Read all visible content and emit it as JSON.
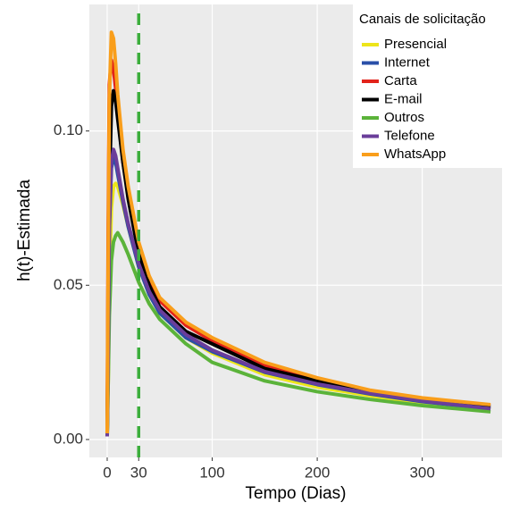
{
  "chart_data": {
    "type": "line",
    "x_label": "Tempo (Dias)",
    "y_label": "h(t)-Estimada",
    "x": [
      0,
      1,
      2,
      4,
      6,
      8,
      10,
      15,
      20,
      30,
      40,
      50,
      75,
      100,
      150,
      200,
      250,
      300,
      365
    ],
    "series": [
      {
        "name": "Presencial",
        "color": "#ede51a",
        "values": [
          0.001,
          0.02,
          0.05,
          0.075,
          0.082,
          0.083,
          0.082,
          0.076,
          0.069,
          0.056,
          0.047,
          0.041,
          0.033,
          0.028,
          0.021,
          0.017,
          0.0142,
          0.0118,
          0.0098
        ]
      },
      {
        "name": "Internet",
        "color": "#2a4fa8",
        "values": [
          0.001,
          0.03,
          0.068,
          0.088,
          0.091,
          0.09,
          0.086,
          0.077,
          0.069,
          0.056,
          0.047,
          0.041,
          0.033,
          0.0285,
          0.0218,
          0.0178,
          0.0148,
          0.0123,
          0.0099
        ]
      },
      {
        "name": "Carta",
        "color": "#e2231a",
        "values": [
          0.002,
          0.07,
          0.115,
          0.123,
          0.12,
          0.114,
          0.106,
          0.09,
          0.079,
          0.062,
          0.052,
          0.045,
          0.037,
          0.032,
          0.024,
          0.0195,
          0.0158,
          0.0133,
          0.011
        ]
      },
      {
        "name": "E-mail",
        "color": "#000000",
        "values": [
          0.002,
          0.04,
          0.08,
          0.108,
          0.113,
          0.11,
          0.104,
          0.09,
          0.078,
          0.06,
          0.05,
          0.043,
          0.035,
          0.031,
          0.023,
          0.019,
          0.0155,
          0.013,
          0.0105
        ]
      },
      {
        "name": "Outros",
        "color": "#5bb33a",
        "values": [
          0.001,
          0.02,
          0.04,
          0.058,
          0.064,
          0.066,
          0.067,
          0.064,
          0.06,
          0.051,
          0.044,
          0.039,
          0.031,
          0.025,
          0.019,
          0.0155,
          0.013,
          0.011,
          0.009
        ]
      },
      {
        "name": "Telefone",
        "color": "#6a3d9a",
        "values": [
          0.001,
          0.03,
          0.07,
          0.09,
          0.094,
          0.092,
          0.088,
          0.078,
          0.07,
          0.057,
          0.048,
          0.042,
          0.034,
          0.029,
          0.022,
          0.018,
          0.015,
          0.0125,
          0.01
        ]
      },
      {
        "name": "WhatsApp",
        "color": "#f99e1b",
        "values": [
          0.002,
          0.06,
          0.11,
          0.132,
          0.13,
          0.122,
          0.112,
          0.094,
          0.082,
          0.064,
          0.053,
          0.046,
          0.038,
          0.033,
          0.025,
          0.02,
          0.016,
          0.0135,
          0.0113
        ]
      }
    ],
    "xlim": [
      -17,
      376
    ],
    "ylim": [
      -0.0058,
      0.141
    ],
    "xticks": [
      0,
      30,
      100,
      200,
      300
    ],
    "yticks": [
      {
        "value": 0,
        "label": "0.00"
      },
      {
        "value": 0.05,
        "label": "0.05"
      },
      {
        "value": 0.1,
        "label": "0.10"
      }
    ],
    "vline": {
      "x": 30,
      "color": "#3cae3c"
    },
    "grid": true,
    "legend": {
      "title": "Canais de solicitação",
      "position": "top-right"
    }
  }
}
